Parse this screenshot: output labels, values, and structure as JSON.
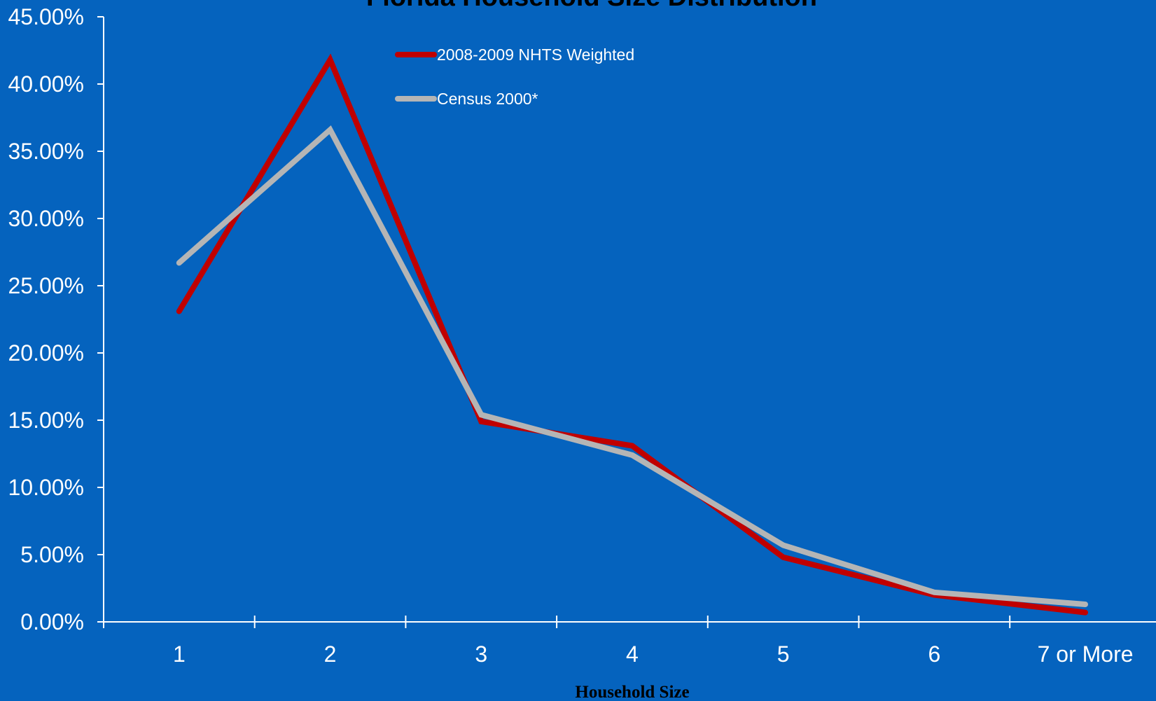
{
  "chart_data": {
    "type": "line",
    "title": "Florida Household Size Distribution",
    "xlabel": "Household Size",
    "ylabel": "",
    "categories": [
      "1",
      "2",
      "3",
      "4",
      "5",
      "6",
      "7 or More"
    ],
    "y_tick_labels": [
      "0.00%",
      "5.00%",
      "10.00%",
      "15.00%",
      "20.00%",
      "25.00%",
      "30.00%",
      "35.00%",
      "40.00%",
      "45.00%"
    ],
    "ylim": [
      0,
      45
    ],
    "y_step": 5,
    "grid": false,
    "legend_position": "top-center",
    "series": [
      {
        "name": "2008-2009 NHTS Weighted",
        "color": "#c00000",
        "values": [
          23.1,
          41.8,
          14.9,
          13.1,
          4.8,
          2.0,
          0.7
        ]
      },
      {
        "name": "Census 2000*",
        "color": "#b5b5b5",
        "values": [
          26.7,
          36.6,
          15.4,
          12.4,
          5.7,
          2.2,
          1.3
        ]
      }
    ]
  }
}
